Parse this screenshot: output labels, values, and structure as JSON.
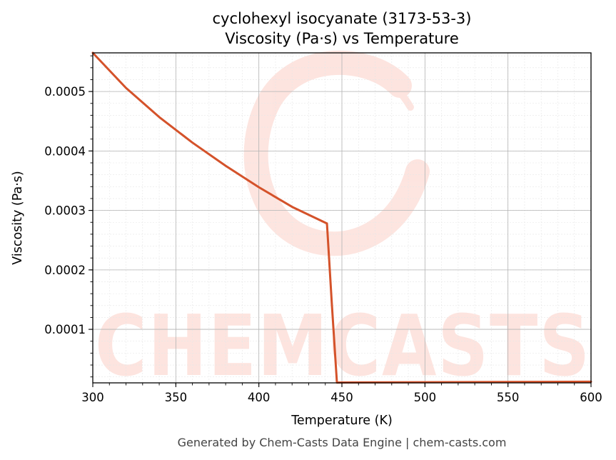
{
  "chart_data": {
    "type": "line",
    "title": "cyclohexyl isocyanate (3173-53-3)",
    "subtitle": "Viscosity (Pa·s) vs Temperature",
    "xlabel": "Temperature (K)",
    "ylabel": "Viscosity (Pa·s)",
    "xlim": [
      300,
      600
    ],
    "ylim": [
      1e-05,
      0.000565
    ],
    "x_ticks": [
      300,
      350,
      400,
      450,
      500,
      550,
      600
    ],
    "x_tick_labels": [
      "300",
      "350",
      "400",
      "450",
      "500",
      "550",
      "600"
    ],
    "y_ticks": [
      0.0001,
      0.0002,
      0.0003,
      0.0004,
      0.0005
    ],
    "y_tick_labels": [
      "0.0001",
      "0.0002",
      "0.0003",
      "0.0004",
      "0.0005"
    ],
    "grid": true,
    "legend": "none",
    "series": [
      {
        "color": "#d4522a",
        "x": [
          300,
          320,
          340,
          360,
          380,
          400,
          420,
          441,
          444,
          447,
          450,
          500,
          550,
          600
        ],
        "y": [
          0.000565,
          0.000506,
          0.000457,
          0.000414,
          0.000375,
          0.000339,
          0.000306,
          0.000278,
          0.00014,
          1.05e-05,
          1.06e-05,
          1.1e-05,
          1.15e-05,
          1.2e-05
        ]
      }
    ]
  },
  "watermark": {
    "text": "CHEMCASTS"
  },
  "footer": {
    "text": "Generated by Chem-Casts Data Engine | chem-casts.com"
  }
}
